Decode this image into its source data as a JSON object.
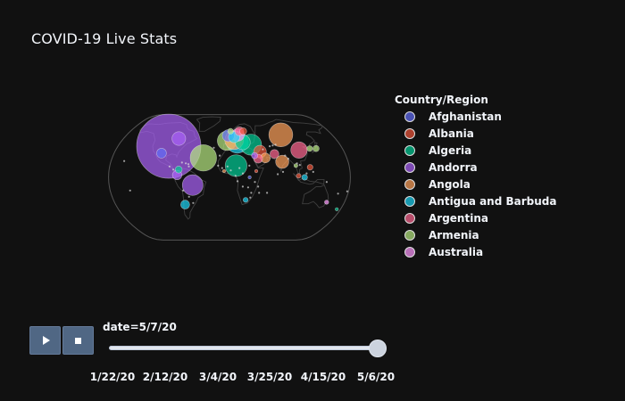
{
  "header": {
    "title": "COVID-19 Live Stats"
  },
  "chart_data": {
    "type": "scatter",
    "projection": "natural-earth",
    "marker": "bubble",
    "legend": {
      "title": "Country/Region",
      "placement": "right",
      "entries": [
        {
          "name": "Afghanistan",
          "color": "#636efa"
        },
        {
          "name": "Albania",
          "color": "#ef553b"
        },
        {
          "name": "Algeria",
          "color": "#00cc96"
        },
        {
          "name": "Andorra",
          "color": "#ab63fa"
        },
        {
          "name": "Angola",
          "color": "#ffa15a"
        },
        {
          "name": "Antigua and Barbuda",
          "color": "#19d3f3"
        },
        {
          "name": "Argentina",
          "color": "#ff6692"
        },
        {
          "name": "Armenia",
          "color": "#b6e880"
        },
        {
          "name": "Australia",
          "color": "#ff97ff"
        }
      ]
    },
    "bubbles": [
      {
        "lon": -98,
        "lat": 40,
        "size": 1300000,
        "color": "#ab63fa"
      },
      {
        "lon": -40,
        "lat": 25,
        "size": 220000,
        "color": "#b6e880"
      },
      {
        "lon": -55,
        "lat": -10,
        "size": 135000,
        "color": "#ab63fa"
      },
      {
        "lon": -70,
        "lat": -35,
        "size": 25000,
        "color": "#19d3f3"
      },
      {
        "lon": -78,
        "lat": 3,
        "size": 28000,
        "color": "#ab63fa"
      },
      {
        "lon": -76,
        "lat": 10,
        "size": 15000,
        "color": "#00cc96"
      },
      {
        "lon": -86,
        "lat": 50,
        "size": 60000,
        "color": "#ab63fa"
      },
      {
        "lon": -106,
        "lat": 31,
        "size": 30000,
        "color": "#636efa"
      },
      {
        "lon": -4,
        "lat": 47,
        "size": 120000,
        "color": "#b6e880"
      },
      {
        "lon": 8,
        "lat": 48,
        "size": 110000,
        "color": "#ffa15a"
      },
      {
        "lon": 13,
        "lat": 45,
        "size": 150000,
        "color": "#19d3f3"
      },
      {
        "lon": 22,
        "lat": 45,
        "size": 70000,
        "color": "#00cc96"
      },
      {
        "lon": 35,
        "lat": 42,
        "size": 140000,
        "color": "#00cc96"
      },
      {
        "lon": 15,
        "lat": 55,
        "size": 50000,
        "color": "#ff97ff"
      },
      {
        "lon": 8,
        "lat": 52,
        "size": 40000,
        "color": "#19d3f3"
      },
      {
        "lon": -2,
        "lat": 54,
        "size": 45000,
        "color": "#636efa"
      },
      {
        "lon": 18,
        "lat": 60,
        "size": 25000,
        "color": "#ff6692"
      },
      {
        "lon": 25,
        "lat": 60,
        "size": 15000,
        "color": "#ef553b"
      },
      {
        "lon": 2,
        "lat": 60,
        "size": 10000,
        "color": "#b6e880"
      },
      {
        "lon": 10,
        "lat": 15,
        "size": 150000,
        "color": "#00cc96"
      },
      {
        "lon": 48,
        "lat": 33,
        "size": 50000,
        "color": "#ef553b"
      },
      {
        "lon": 55,
        "lat": 25,
        "size": 30000,
        "color": "#ffa15a"
      },
      {
        "lon": 44,
        "lat": 24,
        "size": 25000,
        "color": "#ff6692"
      },
      {
        "lon": 39,
        "lat": 28,
        "size": 12000,
        "color": "#ab63fa"
      },
      {
        "lon": 90,
        "lat": 55,
        "size": 180000,
        "color": "#ffa15a"
      },
      {
        "lon": 80,
        "lat": 20,
        "size": 55000,
        "color": "#ffa15a"
      },
      {
        "lon": 70,
        "lat": 30,
        "size": 25000,
        "color": "#ff6692"
      },
      {
        "lon": 110,
        "lat": 35,
        "size": 85000,
        "color": "#ff6692"
      },
      {
        "lon": 128,
        "lat": 37,
        "size": 10000,
        "color": "#b6e880"
      },
      {
        "lon": 138,
        "lat": 37,
        "size": 12000,
        "color": "#b6e880"
      },
      {
        "lon": 100,
        "lat": 15,
        "size": 5000,
        "color": "#b6e880"
      },
      {
        "lon": 103,
        "lat": 2,
        "size": 7000,
        "color": "#ef553b"
      },
      {
        "lon": 112,
        "lat": 0,
        "size": 10000,
        "color": "#19d3f3"
      },
      {
        "lon": 121,
        "lat": 13,
        "size": 10000,
        "color": "#ef553b"
      },
      {
        "lon": 25,
        "lat": -29,
        "size": 8000,
        "color": "#19d3f3"
      },
      {
        "lon": 152,
        "lat": -32,
        "size": 6000,
        "color": "#ff97ff"
      },
      {
        "lon": 174,
        "lat": -41,
        "size": 1500,
        "color": "#00cc96"
      },
      {
        "lon": 40,
        "lat": 8,
        "size": 3000,
        "color": "#ef553b"
      },
      {
        "lon": -8,
        "lat": 8,
        "size": 3000,
        "color": "#ffa15a"
      },
      {
        "lon": 30,
        "lat": 0,
        "size": 2000,
        "color": "#636efa"
      }
    ],
    "slider": {
      "prefix": "date=",
      "current": "5/7/20",
      "ticks": [
        "1/22/20",
        "2/12/20",
        "3/4/20",
        "3/25/20",
        "4/15/20",
        "5/6/20"
      ],
      "value_fraction": 1.0
    },
    "colors": {
      "background": "#111111",
      "land": "#111111",
      "coastline": "#404040",
      "button": "#506784"
    }
  }
}
